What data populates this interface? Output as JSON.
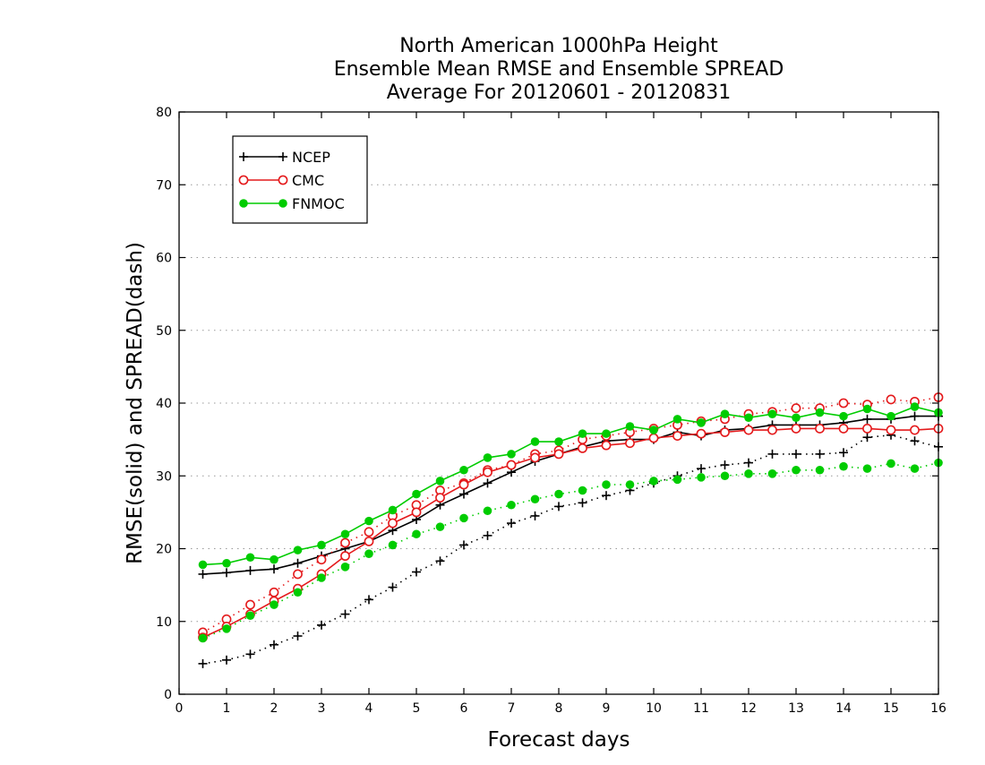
{
  "chart_data": {
    "type": "line",
    "title_lines": [
      "North American 1000hPa Height",
      "Ensemble Mean RMSE and Ensemble SPREAD",
      "Average For 20120601 - 20120831"
    ],
    "xlabel": "Forecast days",
    "ylabel": "RMSE(solid) and SPREAD(dash)",
    "xlim": [
      0,
      16
    ],
    "ylim": [
      0,
      80
    ],
    "xticks": [
      0,
      1,
      2,
      3,
      4,
      5,
      6,
      7,
      8,
      9,
      10,
      11,
      12,
      13,
      14,
      15,
      16
    ],
    "yticks": [
      0,
      10,
      20,
      30,
      40,
      50,
      60,
      70,
      80
    ],
    "grid": "dotted horizontal",
    "legend_position": "top-left",
    "x": [
      0.5,
      1,
      1.5,
      2,
      2.5,
      3,
      3.5,
      4,
      4.5,
      5,
      5.5,
      6,
      6.5,
      7,
      7.5,
      8,
      8.5,
      9,
      9.5,
      10,
      10.5,
      11,
      11.5,
      12,
      12.5,
      13,
      13.5,
      14,
      14.5,
      15,
      15.5,
      16
    ],
    "series": [
      {
        "name": "NCEP",
        "color": "#000000",
        "marker": "plus",
        "rmse": [
          16.5,
          16.7,
          17.0,
          17.2,
          18.0,
          19.0,
          20.0,
          21.0,
          22.5,
          24.0,
          26.0,
          27.5,
          29.0,
          30.5,
          32.0,
          33.0,
          34.0,
          34.8,
          35.0,
          35.0,
          36.0,
          35.5,
          36.3,
          36.5,
          37.0,
          37.0,
          37.0,
          37.3,
          37.8,
          37.8,
          38.2,
          38.2
        ],
        "spread": [
          4.2,
          4.7,
          5.5,
          6.8,
          8.0,
          9.5,
          11.0,
          13.0,
          14.7,
          16.8,
          18.3,
          20.5,
          21.8,
          23.5,
          24.5,
          25.8,
          26.3,
          27.3,
          28.0,
          29.0,
          30.0,
          31.0,
          31.5,
          31.8,
          33.0,
          33.0,
          33.0,
          33.2,
          35.3,
          35.6,
          34.8,
          34.0
        ]
      },
      {
        "name": "CMC",
        "color": "#e41a1c",
        "marker": "circle",
        "rmse": [
          7.8,
          9.3,
          11.0,
          12.8,
          14.5,
          16.5,
          19.0,
          21.0,
          23.5,
          25.0,
          27.0,
          28.8,
          30.5,
          31.5,
          32.5,
          33.0,
          33.8,
          34.2,
          34.5,
          35.2,
          35.5,
          35.8,
          36.0,
          36.3,
          36.3,
          36.5,
          36.5,
          36.5,
          36.5,
          36.3,
          36.3,
          36.5
        ],
        "spread": [
          8.5,
          10.3,
          12.3,
          14.0,
          16.5,
          18.5,
          20.8,
          22.3,
          24.5,
          26.0,
          28.0,
          29.0,
          30.8,
          31.5,
          33.0,
          33.5,
          35.0,
          35.5,
          36.0,
          36.5,
          37.0,
          37.5,
          37.8,
          38.5,
          38.8,
          39.3,
          39.3,
          40.0,
          39.8,
          40.5,
          40.2,
          40.8
        ]
      },
      {
        "name": "FNMOC",
        "color": "#00cc00",
        "marker": "dot",
        "rmse": [
          17.8,
          18.0,
          18.8,
          18.5,
          19.8,
          20.5,
          22.0,
          23.8,
          25.3,
          27.5,
          29.3,
          30.8,
          32.5,
          33.0,
          34.7,
          34.7,
          35.8,
          35.8,
          36.8,
          36.3,
          37.8,
          37.3,
          38.5,
          38.0,
          38.5,
          38.0,
          38.7,
          38.2,
          39.2,
          38.2,
          39.5,
          38.7
        ],
        "spread": [
          7.7,
          9.0,
          10.8,
          12.3,
          14.0,
          16.0,
          17.5,
          19.3,
          20.5,
          22.0,
          23.0,
          24.2,
          25.2,
          26.0,
          26.8,
          27.5,
          28.0,
          28.8,
          28.8,
          29.3,
          29.5,
          29.8,
          30.0,
          30.3,
          30.3,
          30.8,
          30.8,
          31.3,
          31.0,
          31.7,
          31.0,
          31.8
        ]
      }
    ]
  }
}
